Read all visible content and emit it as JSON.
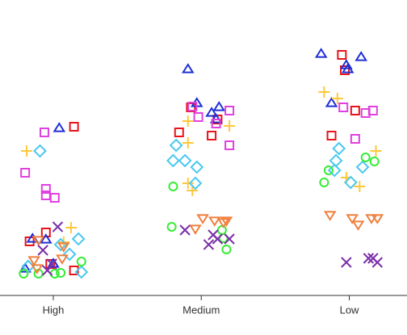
{
  "chart_data": {
    "type": "scatter",
    "xlim": [
      -0.36,
      2.39
    ],
    "ylim": [
      0,
      350
    ],
    "xticks": [
      {
        "value": 0,
        "label": "High"
      },
      {
        "value": 1,
        "label": "Medium"
      },
      {
        "value": 2,
        "label": "Low"
      }
    ],
    "series": [
      {
        "color": "#e8141a",
        "marker": "square",
        "x": [
          0.14,
          -0.05,
          -0.16,
          -0.02,
          0.14,
          0.93,
          0.85,
          1.07,
          1.11,
          1.95,
          1.97,
          2.04,
          1.88
        ],
        "values": [
          203,
          72,
          61,
          33,
          25,
          227,
          196,
          192,
          212,
          292,
          273,
          223,
          192
        ]
      },
      {
        "color": "#1f2fd6",
        "marker": "triangle-up",
        "x": [
          0.04,
          -0.14,
          -0.05,
          -0.19,
          0,
          0.91,
          0.97,
          1.07,
          1.12,
          1.1,
          1.81,
          2.08,
          1.98,
          1.99,
          1.88
        ],
        "values": [
          201,
          64,
          63,
          27,
          33,
          274,
          232,
          220,
          227,
          212,
          293,
          289,
          279,
          274,
          232
        ]
      },
      {
        "color": "#e040e0",
        "marker": "square",
        "x": [
          -0.06,
          -0.19,
          -0.05,
          0.01,
          -0.05,
          0.94,
          1.19,
          0.98,
          1.1,
          1.19,
          1.96,
          2.16,
          2.11,
          2.04
        ],
        "values": [
          196,
          146,
          126,
          115,
          118,
          228,
          223,
          215,
          207,
          180,
          227,
          223,
          220,
          188
        ]
      },
      {
        "color": "#ffc83c",
        "marker": "plus",
        "x": [
          -0.18,
          0.12,
          0.07,
          0.91,
          1.19,
          0.91,
          0.91,
          0.94,
          1.83,
          1.92,
          2.18,
          1.98,
          2.07
        ],
        "values": [
          173,
          78,
          60,
          210,
          204,
          183,
          133,
          124,
          246,
          238,
          173,
          140,
          129
        ]
      },
      {
        "color": "#4cc8f0",
        "marker": "diamond",
        "x": [
          -0.09,
          0.17,
          0.05,
          0.11,
          -0.17,
          0.19,
          0.83,
          0.81,
          0.89,
          0.97,
          0.96,
          1.93,
          1.91,
          1.9,
          2.09,
          2.01
        ],
        "values": [
          173,
          64,
          57,
          45,
          30,
          23,
          180,
          161,
          161,
          153,
          133,
          176,
          161,
          149,
          153,
          134
        ]
      },
      {
        "color": "#33ee33",
        "marker": "circle",
        "x": [
          0.19,
          -0.2,
          -0.1,
          0.01,
          0.05,
          0.81,
          0.8,
          1.14,
          1.15,
          1.17,
          2.11,
          2.17,
          1.86,
          1.83
        ],
        "values": [
          36,
          21,
          21,
          21,
          22,
          129,
          79,
          75,
          65,
          51,
          165,
          160,
          149,
          134
        ]
      },
      {
        "color": "#f07f3c",
        "marker": "triangle-down",
        "x": [
          -0.1,
          -0.13,
          0.07,
          0.06,
          -0.11,
          1.01,
          1.09,
          1.17,
          1.15,
          0.96,
          1.87,
          2.02,
          2.06,
          2.15,
          2.19
        ],
        "values": [
          63,
          38,
          55,
          40,
          28,
          90,
          87,
          87,
          85,
          77,
          94,
          90,
          82,
          90,
          90
        ]
      },
      {
        "color": "#7b2fa8",
        "marker": "x",
        "x": [
          0.03,
          -0.07,
          -0.01,
          -0.04,
          0.89,
          1.08,
          1.05,
          1.19,
          1.11,
          1.98,
          2.13,
          2.16,
          2.19
        ],
        "values": [
          79,
          50,
          33,
          25,
          75,
          69,
          57,
          64,
          64,
          35,
          40,
          40,
          35
        ]
      }
    ]
  }
}
